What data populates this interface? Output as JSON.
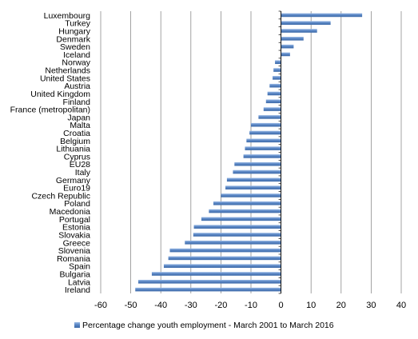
{
  "chart_data": {
    "type": "bar",
    "orientation": "horizontal",
    "categories": [
      "Luxembourg",
      "Turkey",
      "Hungary",
      "Denmark",
      "Sweden",
      "Iceland",
      "Norway",
      "Netherlands",
      "United States",
      "Austria",
      "United Kingdom",
      "Finland",
      "France (metropolitan)",
      "Japan",
      "Malta",
      "Croatia",
      "Belgium",
      "Lithuania",
      "Cyprus",
      "EU28",
      "Italy",
      "Germany",
      "Euro19",
      "Czech Republic",
      "Poland",
      "Macedonia",
      "Portugal",
      "Estonia",
      "Slovakia",
      "Greece",
      "Slovenia",
      "Romania",
      "Spain",
      "Bulgaria",
      "Latvia",
      "Ireland"
    ],
    "series": [
      {
        "name": "Percentage change youth employment - March 2001 to March 2016",
        "values": [
          27,
          16.5,
          12,
          7.5,
          4.2,
          3,
          -2,
          -2.5,
          -2.8,
          -3.8,
          -4.5,
          -5,
          -5.8,
          -7.5,
          -10,
          -10.5,
          -11.5,
          -12,
          -12.5,
          -15.5,
          -16,
          -18,
          -18.5,
          -20,
          -22.5,
          -24,
          -26.5,
          -29,
          -29.2,
          -32,
          -37,
          -37.5,
          -39,
          -43,
          -47.5,
          -48.5
        ],
        "color": "#4f81bd"
      }
    ],
    "xlim": [
      -60,
      40
    ],
    "xticks": [
      -60,
      -50,
      -40,
      -30,
      -20,
      -10,
      0,
      10,
      20,
      30,
      40
    ],
    "xtick_labels": [
      "-60",
      "-50",
      "-40",
      "-30",
      "-20",
      "-10",
      "0",
      "10",
      "20",
      "30",
      "40"
    ],
    "grid": "vertical major gridlines",
    "legend": "bottom",
    "title": "",
    "xlabel": "",
    "ylabel": ""
  }
}
